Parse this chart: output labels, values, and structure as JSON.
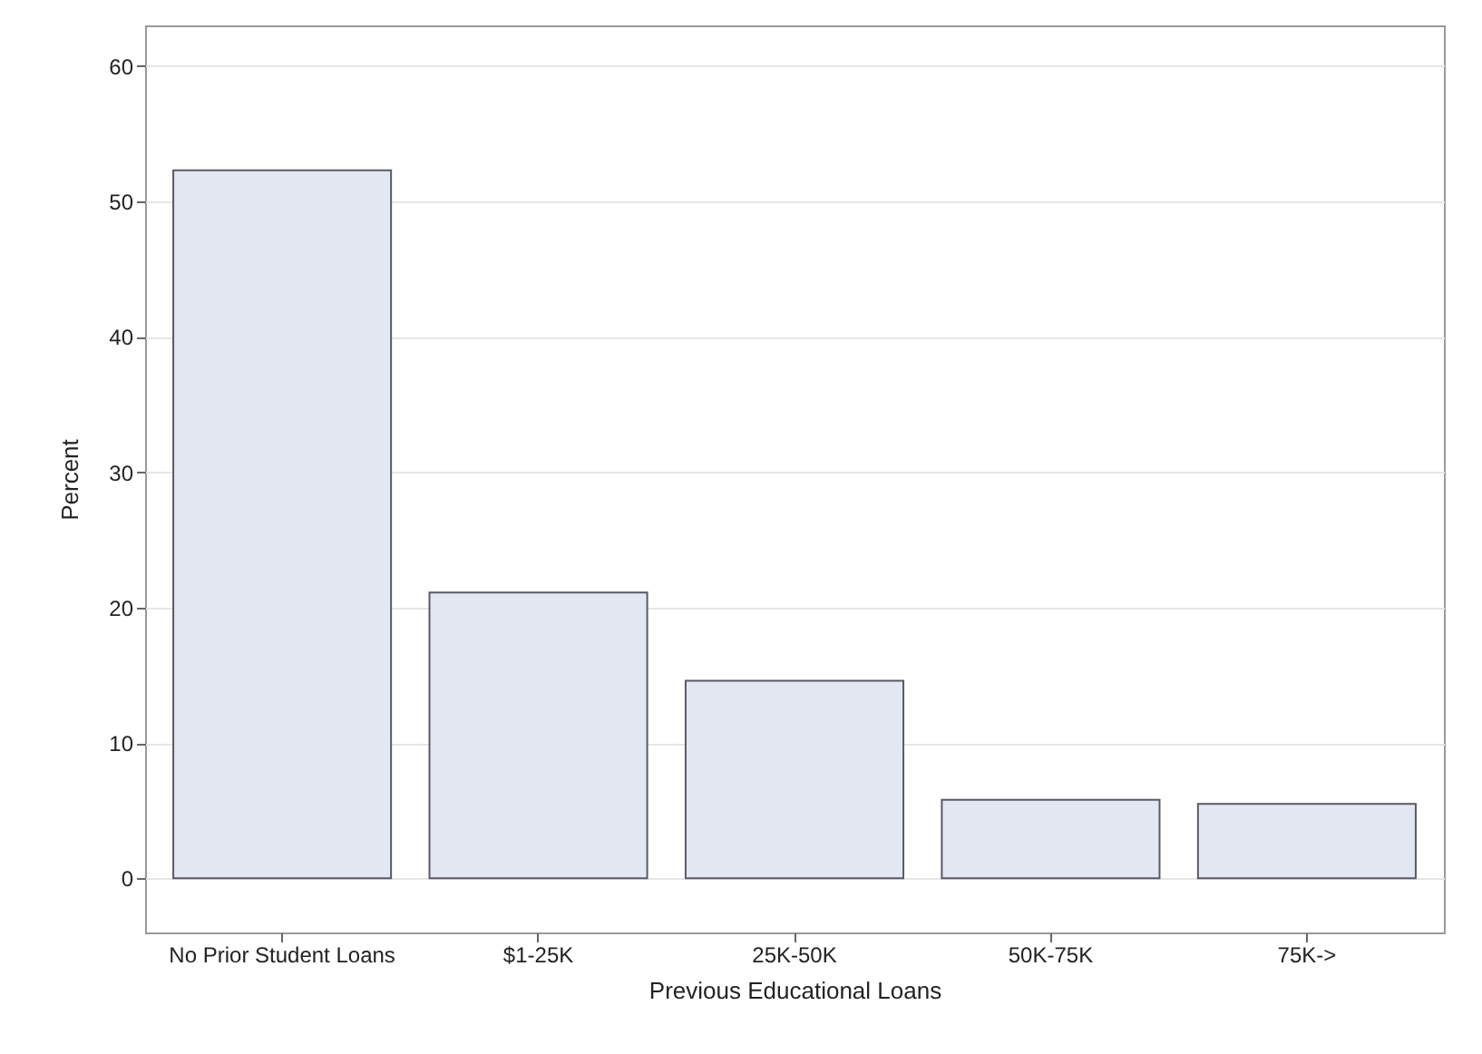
{
  "chart_data": {
    "type": "bar",
    "xlabel": "Previous Educational Loans",
    "ylabel": "Percent",
    "categories": [
      "No Prior Student Loans",
      "$1-25K",
      "25K-50K",
      "50K-75K",
      "75K->"
    ],
    "values": [
      52.3,
      21.1,
      14.6,
      5.8,
      5.5
    ],
    "color": "#e3e7f1",
    "ylim": [
      -4,
      63
    ],
    "yticks": [
      0,
      10,
      20,
      30,
      40,
      50,
      60
    ],
    "grid": "y"
  }
}
